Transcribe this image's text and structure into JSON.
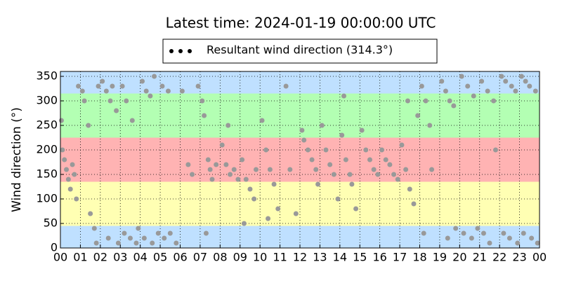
{
  "chart_data": {
    "type": "scatter",
    "title": "Latest time: 2024-01-19 00:00:00 UTC",
    "ylabel": "Wind direction (°)",
    "legend_position": "top",
    "legend_marker_color": "#000000",
    "grid": true,
    "bands": [
      {
        "from": 0,
        "to": 45,
        "color": "#bfe0ff"
      },
      {
        "from": 45,
        "to": 135,
        "color": "#ffffb3"
      },
      {
        "from": 135,
        "to": 225,
        "color": "#ffb3b3"
      },
      {
        "from": 225,
        "to": 315,
        "color": "#b3ffb3"
      },
      {
        "from": 315,
        "to": 360,
        "color": "#bfe0ff"
      }
    ],
    "xlim": [
      0,
      24
    ],
    "xticks": [
      {
        "value": 0,
        "label": "00"
      },
      {
        "value": 1,
        "label": "01"
      },
      {
        "value": 2,
        "label": "02"
      },
      {
        "value": 3,
        "label": "03"
      },
      {
        "value": 4,
        "label": "04"
      },
      {
        "value": 5,
        "label": "05"
      },
      {
        "value": 6,
        "label": "06"
      },
      {
        "value": 7,
        "label": "07"
      },
      {
        "value": 8,
        "label": "08"
      },
      {
        "value": 9,
        "label": "09"
      },
      {
        "value": 10,
        "label": "10"
      },
      {
        "value": 11,
        "label": "11"
      },
      {
        "value": 12,
        "label": "12"
      },
      {
        "value": 13,
        "label": "13"
      },
      {
        "value": 14,
        "label": "14"
      },
      {
        "value": 15,
        "label": "15"
      },
      {
        "value": 16,
        "label": "16"
      },
      {
        "value": 17,
        "label": "17"
      },
      {
        "value": 18,
        "label": "18"
      },
      {
        "value": 19,
        "label": "19"
      },
      {
        "value": 20,
        "label": "20"
      },
      {
        "value": 21,
        "label": "21"
      },
      {
        "value": 22,
        "label": "22"
      },
      {
        "value": 23,
        "label": "23"
      },
      {
        "value": 24,
        "label": "00"
      }
    ],
    "ylim": [
      0,
      360
    ],
    "yticks": [
      0,
      50,
      100,
      150,
      200,
      250,
      300,
      350
    ],
    "series": [
      {
        "name": "Resultant wind direction (314.3°)",
        "color": "#999999",
        "x": [
          0.05,
          0.1,
          0.2,
          0.3,
          0.4,
          0.5,
          0.6,
          0.7,
          0.8,
          0.9,
          1.1,
          1.2,
          1.4,
          1.5,
          1.7,
          1.8,
          1.9,
          2.1,
          2.3,
          2.5,
          2.6,
          2.8,
          2.4,
          2.9,
          3.1,
          3.3,
          3.6,
          3.2,
          3.5,
          3.8,
          3.9,
          4.1,
          4.3,
          4.5,
          4.7,
          4.2,
          4.6,
          4.9,
          5.1,
          5.4,
          5.2,
          5.5,
          5.8,
          6.1,
          6.4,
          6.6,
          6.9,
          7.1,
          7.2,
          7.4,
          7.5,
          7.6,
          7.8,
          7.3,
          8.1,
          8.3,
          8.5,
          8.7,
          8.9,
          8.4,
          9.1,
          9.3,
          9.5,
          9.7,
          9.8,
          9.2,
          10.1,
          10.3,
          10.5,
          10.7,
          10.9,
          10.4,
          11.3,
          11.5,
          11.8,
          12.1,
          12.2,
          12.4,
          12.6,
          12.8,
          12.9,
          13.1,
          13.3,
          13.5,
          13.7,
          13.9,
          14.1,
          14.3,
          14.5,
          14.6,
          14.8,
          14.2,
          15.1,
          15.3,
          15.5,
          15.7,
          15.9,
          16.1,
          16.3,
          16.5,
          16.7,
          16.9,
          17.1,
          17.3,
          17.5,
          17.7,
          17.4,
          17.9,
          18.1,
          18.3,
          18.5,
          18.2,
          18.6,
          19.1,
          19.3,
          19.5,
          19.7,
          19.4,
          19.8,
          20.1,
          20.4,
          20.7,
          20.2,
          20.6,
          20.9,
          21.1,
          21.4,
          21.7,
          21.2,
          21.5,
          21.8,
          22.1,
          22.3,
          22.6,
          22.8,
          22.2,
          22.5,
          22.9,
          23.1,
          23.3,
          23.5,
          23.8,
          23.2,
          23.6,
          23.9
        ],
        "values": [
          260,
          200,
          180,
          160,
          140,
          120,
          170,
          150,
          100,
          330,
          320,
          300,
          250,
          70,
          40,
          10,
          330,
          340,
          320,
          300,
          330,
          280,
          20,
          10,
          330,
          300,
          260,
          30,
          20,
          10,
          40,
          340,
          320,
          310,
          350,
          20,
          10,
          30,
          330,
          320,
          20,
          30,
          10,
          320,
          170,
          150,
          330,
          300,
          270,
          180,
          160,
          140,
          170,
          30,
          210,
          170,
          150,
          160,
          140,
          250,
          180,
          140,
          120,
          100,
          160,
          50,
          260,
          200,
          160,
          130,
          80,
          60,
          330,
          160,
          70,
          240,
          220,
          200,
          180,
          160,
          130,
          250,
          200,
          170,
          150,
          100,
          230,
          180,
          150,
          130,
          80,
          310,
          240,
          200,
          180,
          160,
          150,
          200,
          180,
          170,
          150,
          140,
          210,
          160,
          120,
          90,
          300,
          270,
          330,
          300,
          250,
          30,
          160,
          340,
          320,
          300,
          290,
          20,
          40,
          350,
          330,
          310,
          30,
          20,
          40,
          340,
          320,
          300,
          30,
          10,
          200,
          350,
          340,
          330,
          320,
          30,
          20,
          10,
          350,
          340,
          330,
          320,
          30,
          20,
          10
        ]
      }
    ]
  }
}
